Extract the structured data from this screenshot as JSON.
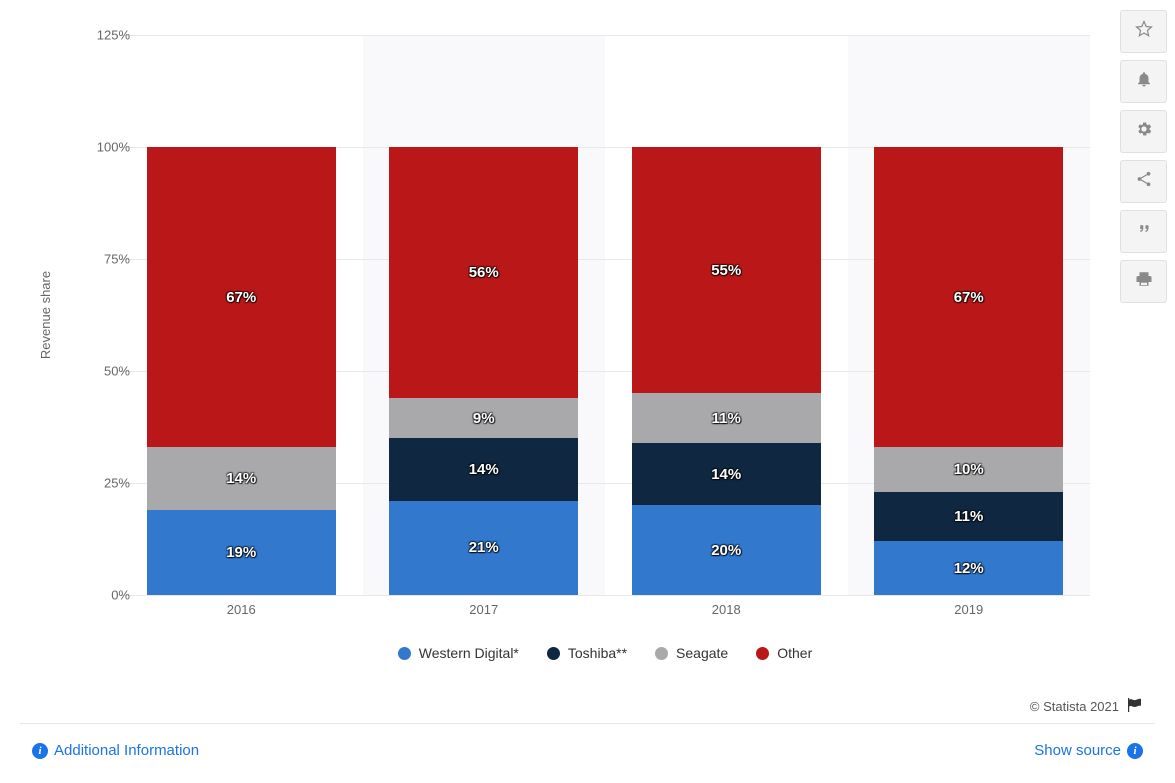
{
  "chart": {
    "type": "stacked-bar",
    "ylabel": "Revenue share",
    "ylim": [
      0,
      125
    ],
    "ytick_step": 25,
    "ytick_suffix": "%",
    "grid_color": "#e8e8e8",
    "highlight_band_color": "rgba(245,245,248,0.6)",
    "background_color": "#ffffff",
    "label_color": "#666666",
    "label_fontsize": 13,
    "categories": [
      "2016",
      "2017",
      "2018",
      "2019"
    ],
    "series": [
      {
        "name": "Western Digital*",
        "color": "#3278cd"
      },
      {
        "name": "Toshiba**",
        "color": "#0f2741"
      },
      {
        "name": "Seagate",
        "color": "#a9a9ab"
      },
      {
        "name": "Other",
        "color": "#ba1818"
      }
    ],
    "data": {
      "2016": {
        "Western Digital*": 19,
        "Toshiba**": null,
        "Seagate": 14,
        "Other": 67
      },
      "2017": {
        "Western Digital*": 21,
        "Toshiba**": 14,
        "Seagate": 9,
        "Other": 56
      },
      "2018": {
        "Western Digital*": 20,
        "Toshiba**": 14,
        "Seagate": 11,
        "Other": 55
      },
      "2019": {
        "Western Digital*": 12,
        "Toshiba**": 11,
        "Seagate": 10,
        "Other": 67
      }
    },
    "bar_label_fontsize": 15,
    "bar_label_color": "#ffffff",
    "bar_width_ratio": 0.78,
    "highlight_bands": [
      1,
      3
    ]
  },
  "legend": {
    "fontsize": 14,
    "swatch_shape": "circle",
    "swatch_size": 13
  },
  "footer": {
    "copyright": "© Statista 2021",
    "additional_info": "Additional Information",
    "show_source": "Show source",
    "link_color": "#1a73e8",
    "border_color": "#e6e6e6"
  },
  "toolbar": {
    "buttons": [
      {
        "name": "favorite-icon",
        "title": "Favorite"
      },
      {
        "name": "notify-icon",
        "title": "Notify"
      },
      {
        "name": "settings-icon",
        "title": "Settings"
      },
      {
        "name": "share-icon",
        "title": "Share"
      },
      {
        "name": "citation-icon",
        "title": "Cite"
      },
      {
        "name": "print-icon",
        "title": "Print"
      }
    ],
    "btn_bg": "#f4f4f4",
    "btn_border": "#e0e0e0",
    "icon_color": "#8a8a8a"
  }
}
